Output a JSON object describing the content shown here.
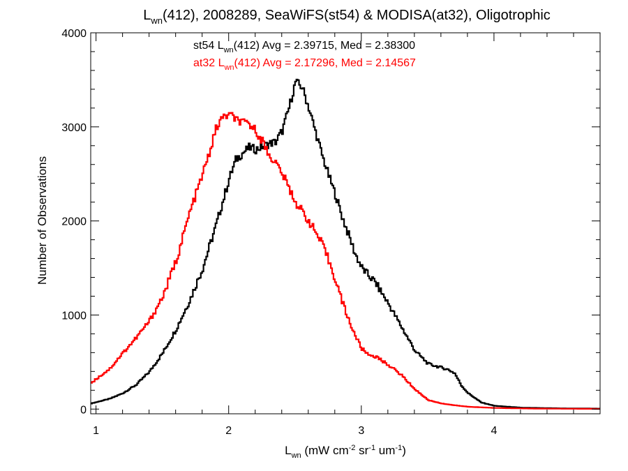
{
  "chart_data": {
    "type": "line",
    "title_main": "L",
    "title_sub": "wn",
    "title_rest": "(412), 2008289, SeaWiFS(st54) & MODISA(at32), Oligotrophic",
    "xlabel": {
      "parts": [
        {
          "text": "L",
          "shift": "none"
        },
        {
          "text": "wn",
          "shift": "sub"
        },
        {
          "text": " (mW cm",
          "shift": "none"
        },
        {
          "text": "-2",
          "shift": "super"
        },
        {
          "text": " sr",
          "shift": "none"
        },
        {
          "text": "-1",
          "shift": "super"
        },
        {
          "text": " um",
          "shift": "none"
        },
        {
          "text": "-1",
          "shift": "super"
        },
        {
          "text": ")",
          "shift": "none"
        }
      ]
    },
    "ylabel": "Number of Observations",
    "xlim": [
      0.96,
      4.8
    ],
    "ylim": [
      -50,
      4000
    ],
    "x_ticks": [
      1,
      2,
      3,
      4
    ],
    "x_tick_labels": [
      "1",
      "2",
      "3",
      "4"
    ],
    "y_ticks": [
      0,
      1000,
      2000,
      3000,
      4000
    ],
    "y_tick_labels": [
      "0",
      "1000",
      "2000",
      "3000",
      "4000"
    ],
    "x_minor_step": 0.2,
    "y_minor_step": 200,
    "grid": false,
    "annotations": [
      {
        "prefix": "st54 L",
        "sub": "wn",
        "suffix": "(412) Avg = 2.39715, Med = 2.38300",
        "color": "#000000"
      },
      {
        "prefix": "at32 L",
        "sub": "wn",
        "suffix": "(412) Avg = 2.17296, Med = 2.14567",
        "color": "#ff0000"
      }
    ],
    "series": [
      {
        "color": "#000000",
        "points": [
          [
            0.96,
            60
          ],
          [
            1.1,
            110
          ],
          [
            1.2,
            170
          ],
          [
            1.3,
            260
          ],
          [
            1.4,
            400
          ],
          [
            1.5,
            600
          ],
          [
            1.6,
            850
          ],
          [
            1.7,
            1150
          ],
          [
            1.8,
            1500
          ],
          [
            1.9,
            1950
          ],
          [
            2.0,
            2450
          ],
          [
            2.05,
            2650
          ],
          [
            2.1,
            2720
          ],
          [
            2.15,
            2780
          ],
          [
            2.2,
            2760
          ],
          [
            2.3,
            2820
          ],
          [
            2.35,
            2840
          ],
          [
            2.4,
            2960
          ],
          [
            2.45,
            3200
          ],
          [
            2.5,
            3480
          ],
          [
            2.55,
            3420
          ],
          [
            2.6,
            3200
          ],
          [
            2.65,
            2950
          ],
          [
            2.7,
            2700
          ],
          [
            2.75,
            2480
          ],
          [
            2.8,
            2280
          ],
          [
            2.85,
            2050
          ],
          [
            2.9,
            1850
          ],
          [
            2.95,
            1650
          ],
          [
            3.0,
            1500
          ],
          [
            3.05,
            1420
          ],
          [
            3.1,
            1350
          ],
          [
            3.2,
            1120
          ],
          [
            3.3,
            870
          ],
          [
            3.4,
            620
          ],
          [
            3.5,
            480
          ],
          [
            3.6,
            440
          ],
          [
            3.65,
            420
          ],
          [
            3.7,
            380
          ],
          [
            3.75,
            250
          ],
          [
            3.8,
            170
          ],
          [
            3.9,
            70
          ],
          [
            4.0,
            35
          ],
          [
            4.2,
            15
          ],
          [
            4.5,
            8
          ],
          [
            4.8,
            5
          ]
        ]
      },
      {
        "color": "#ff0000",
        "points": [
          [
            0.96,
            280
          ],
          [
            1.1,
            430
          ],
          [
            1.2,
            600
          ],
          [
            1.3,
            760
          ],
          [
            1.4,
            940
          ],
          [
            1.5,
            1200
          ],
          [
            1.6,
            1580
          ],
          [
            1.7,
            2080
          ],
          [
            1.8,
            2500
          ],
          [
            1.85,
            2720
          ],
          [
            1.9,
            2980
          ],
          [
            1.95,
            3100
          ],
          [
            2.0,
            3130
          ],
          [
            2.05,
            3080
          ],
          [
            2.1,
            3040
          ],
          [
            2.15,
            3030
          ],
          [
            2.2,
            2960
          ],
          [
            2.25,
            2850
          ],
          [
            2.3,
            2700
          ],
          [
            2.35,
            2620
          ],
          [
            2.4,
            2500
          ],
          [
            2.45,
            2350
          ],
          [
            2.5,
            2200
          ],
          [
            2.55,
            2100
          ],
          [
            2.6,
            2000
          ],
          [
            2.65,
            1880
          ],
          [
            2.7,
            1750
          ],
          [
            2.75,
            1580
          ],
          [
            2.8,
            1380
          ],
          [
            2.85,
            1150
          ],
          [
            2.9,
            950
          ],
          [
            2.95,
            780
          ],
          [
            3.0,
            640
          ],
          [
            3.05,
            580
          ],
          [
            3.1,
            560
          ],
          [
            3.2,
            470
          ],
          [
            3.3,
            360
          ],
          [
            3.4,
            210
          ],
          [
            3.5,
            95
          ],
          [
            3.6,
            60
          ],
          [
            3.7,
            40
          ],
          [
            3.8,
            25
          ],
          [
            4.0,
            12
          ],
          [
            4.3,
            5
          ],
          [
            4.8,
            2
          ]
        ]
      }
    ]
  }
}
